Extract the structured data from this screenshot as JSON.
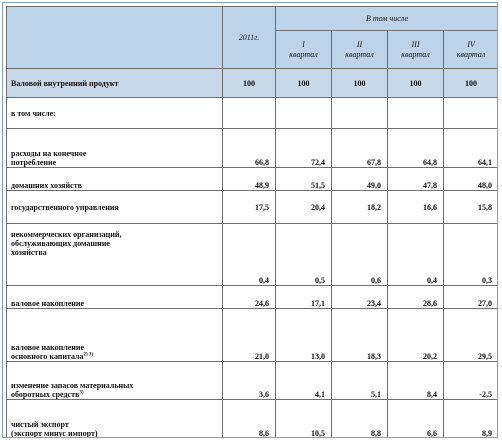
{
  "header": {
    "year": "2011г.",
    "including": "В том числе",
    "quarters": [
      {
        "num": "I",
        "word": "квартал"
      },
      {
        "num": "II",
        "word": "квартал"
      },
      {
        "num": "III",
        "word": "квартал"
      },
      {
        "num": "IV",
        "word": "квартал"
      }
    ]
  },
  "rows": {
    "gdp": {
      "label": "Валовой внутренний продукт",
      "values": [
        "100",
        "100",
        "100",
        "100",
        "100"
      ]
    },
    "incl": {
      "label": "в том числе:"
    },
    "cons": {
      "label_line1": "расходы на конечное",
      "label_line2": "потребление",
      "values": [
        "66,8",
        "72,4",
        "67,8",
        "64,8",
        "64,1"
      ]
    },
    "hh": {
      "label": "домашних хозяйств",
      "values": [
        "48,9",
        "51,5",
        "49,0",
        "47,8",
        "48,0"
      ]
    },
    "gov": {
      "label": "государственного управления",
      "values": [
        "17,5",
        "20,4",
        "18,2",
        "16,6",
        "15,8"
      ]
    },
    "npo": {
      "label_line1": "некоммерческих организаций,",
      "label_line2": "обслуживающих домашние",
      "label_line3": "хозяйства",
      "values": [
        "0,4",
        "0,5",
        "0,6",
        "0,4",
        "0,3"
      ]
    },
    "gross": {
      "label": "валовое накопление",
      "values": [
        "24,6",
        "17,1",
        "23,4",
        "28,6",
        "27,0"
      ]
    },
    "fixed": {
      "label_line1": "валовое накопление",
      "label_line2": "основного капитала",
      "footnote": "2) 3)",
      "values": [
        "21,0",
        "13,0",
        "18,3",
        "20,2",
        "29,5"
      ]
    },
    "stock": {
      "label_line1": "изменение запасов материальных",
      "label_line2": "оборотных средств",
      "footnote": "3)",
      "values": [
        "3,6",
        "4,1",
        "5,1",
        "8,4",
        "-2,5"
      ]
    },
    "net": {
      "label_line1": "чистый экспорт",
      "label_line2": "(экспорт минус импорт)",
      "values": [
        "8,6",
        "10,5",
        "8,8",
        "6,6",
        "8,9"
      ]
    }
  }
}
